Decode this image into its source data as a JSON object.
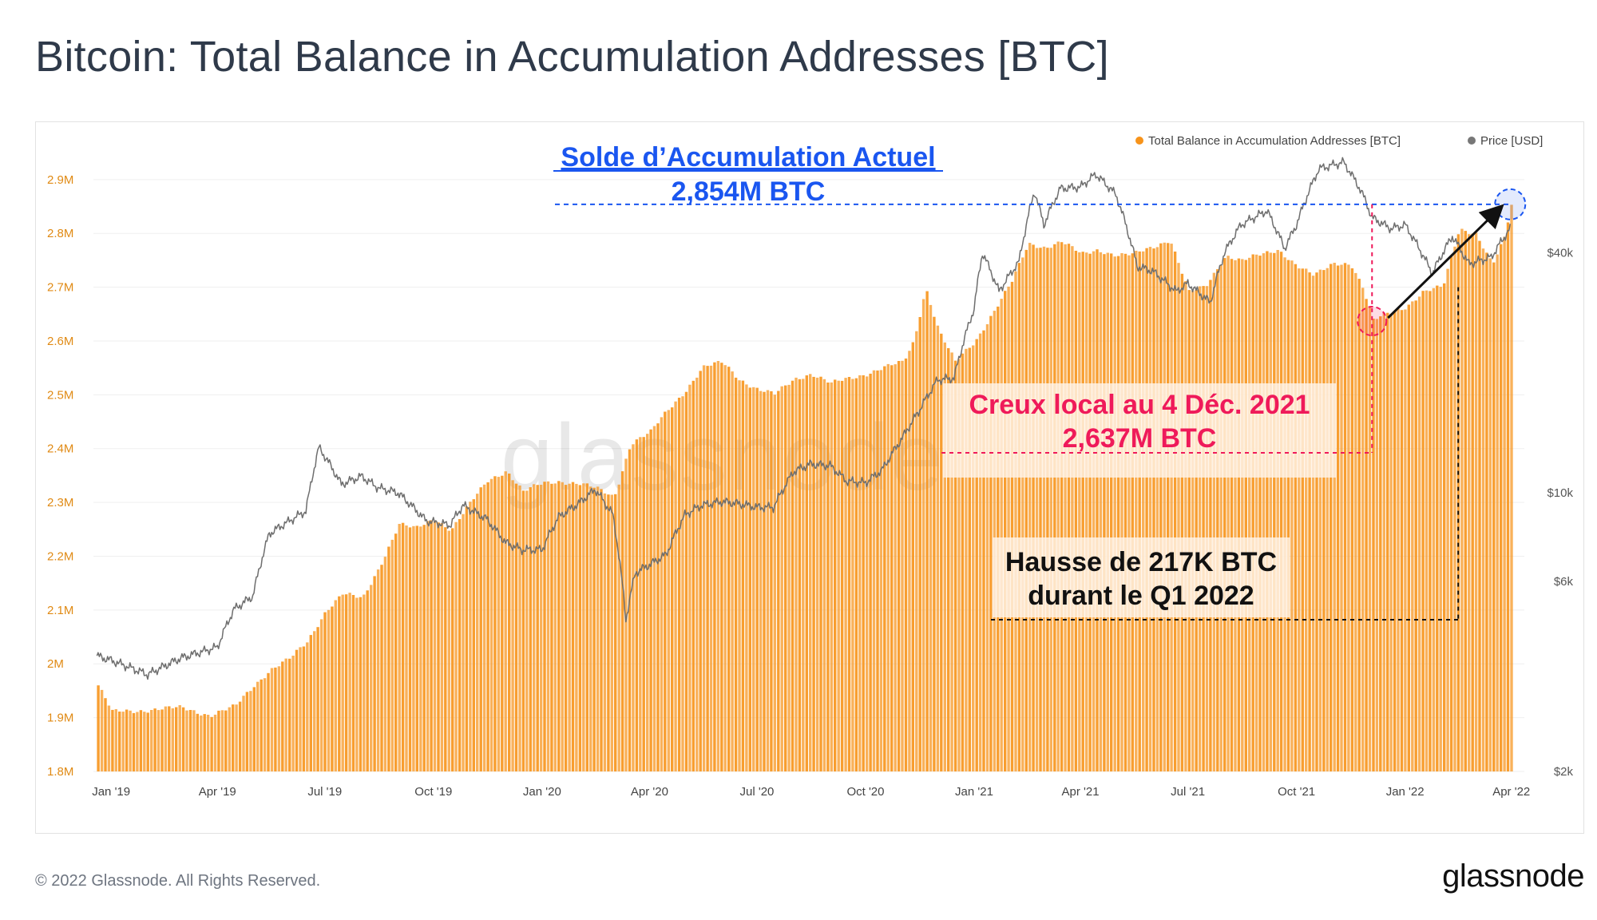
{
  "title": "Bitcoin: Total Balance in Accumulation Addresses [BTC]",
  "footer": {
    "copyright": "© 2022 Glassnode. All Rights Reserved.",
    "logo": "glassnode"
  },
  "watermark": "glassnode",
  "chart_data": {
    "type": "bar",
    "title": "Bitcoin: Total Balance in Accumulation Addresses [BTC]",
    "legend_position": "top-right",
    "grid": true,
    "legend": [
      {
        "name": "Total Balance in Accumulation Addresses [BTC]",
        "color": "#f7931a"
      },
      {
        "name": "Price [USD]",
        "color": "#777777"
      }
    ],
    "x_ticks": [
      "Jan '19",
      "Apr '19",
      "Jul '19",
      "Oct '19",
      "Jan '20",
      "Apr '20",
      "Jul '20",
      "Oct '20",
      "Jan '21",
      "Apr '21",
      "Jul '21",
      "Oct '21",
      "Jan '22",
      "Apr '22"
    ],
    "y_left_ticks": [
      "1.8M",
      "1.9M",
      "2M",
      "2.1M",
      "2.2M",
      "2.3M",
      "2.4M",
      "2.5M",
      "2.6M",
      "2.7M",
      "2.8M",
      "2.9M"
    ],
    "y_left_range": [
      1800000,
      2925000
    ],
    "y_right_ticks": [
      "$2k",
      "$6k",
      "$10k",
      "$40k"
    ],
    "y_right_scale": "log",
    "y_right_range": [
      2000,
      66000
    ],
    "colors": {
      "bars": "#f7931a",
      "price": "#6e6e6e",
      "annotation_blue": "#1a56f0",
      "annotation_red": "#ef1a5a",
      "annotation_black": "#111111"
    },
    "series": [
      {
        "name": "Total Balance in Accumulation Addresses [BTC]",
        "axis": "left",
        "points": [
          [
            "2018-12-20",
            1960000
          ],
          [
            "2019-01-01",
            1910000
          ],
          [
            "2019-02-01",
            1915000
          ],
          [
            "2019-03-01",
            1918000
          ],
          [
            "2019-03-25",
            1905000
          ],
          [
            "2019-04-15",
            1920000
          ],
          [
            "2019-05-01",
            1960000
          ],
          [
            "2019-05-15",
            1990000
          ],
          [
            "2019-06-01",
            2010000
          ],
          [
            "2019-06-15",
            2040000
          ],
          [
            "2019-07-01",
            2100000
          ],
          [
            "2019-07-15",
            2130000
          ],
          [
            "2019-08-01",
            2120000
          ],
          [
            "2019-08-15",
            2180000
          ],
          [
            "2019-09-01",
            2260000
          ],
          [
            "2019-09-15",
            2250000
          ],
          [
            "2019-10-01",
            2270000
          ],
          [
            "2019-10-15",
            2250000
          ],
          [
            "2019-11-01",
            2300000
          ],
          [
            "2019-11-15",
            2340000
          ],
          [
            "2019-12-01",
            2360000
          ],
          [
            "2019-12-15",
            2320000
          ],
          [
            "2020-01-01",
            2335000
          ],
          [
            "2020-01-15",
            2340000
          ],
          [
            "2020-02-01",
            2335000
          ],
          [
            "2020-02-15",
            2325000
          ],
          [
            "2020-03-01",
            2310000
          ],
          [
            "2020-03-15",
            2410000
          ],
          [
            "2020-04-01",
            2430000
          ],
          [
            "2020-04-15",
            2470000
          ],
          [
            "2020-05-01",
            2510000
          ],
          [
            "2020-05-15",
            2550000
          ],
          [
            "2020-06-01",
            2560000
          ],
          [
            "2020-06-15",
            2530000
          ],
          [
            "2020-07-01",
            2510000
          ],
          [
            "2020-07-15",
            2500000
          ],
          [
            "2020-08-01",
            2530000
          ],
          [
            "2020-08-15",
            2540000
          ],
          [
            "2020-09-01",
            2520000
          ],
          [
            "2020-09-15",
            2530000
          ],
          [
            "2020-10-01",
            2540000
          ],
          [
            "2020-10-15",
            2550000
          ],
          [
            "2020-11-01",
            2560000
          ],
          [
            "2020-11-10",
            2600000
          ],
          [
            "2020-11-20",
            2700000
          ],
          [
            "2020-12-01",
            2620000
          ],
          [
            "2020-12-15",
            2560000
          ],
          [
            "2021-01-01",
            2600000
          ],
          [
            "2021-01-15",
            2650000
          ],
          [
            "2021-02-01",
            2710000
          ],
          [
            "2021-02-15",
            2780000
          ],
          [
            "2021-03-01",
            2775000
          ],
          [
            "2021-03-15",
            2785000
          ],
          [
            "2021-04-01",
            2760000
          ],
          [
            "2021-04-15",
            2770000
          ],
          [
            "2021-05-01",
            2760000
          ],
          [
            "2021-05-15",
            2760000
          ],
          [
            "2021-06-01",
            2775000
          ],
          [
            "2021-06-15",
            2790000
          ],
          [
            "2021-07-01",
            2690000
          ],
          [
            "2021-07-15",
            2700000
          ],
          [
            "2021-08-01",
            2760000
          ],
          [
            "2021-08-15",
            2750000
          ],
          [
            "2021-09-01",
            2760000
          ],
          [
            "2021-09-15",
            2770000
          ],
          [
            "2021-10-01",
            2740000
          ],
          [
            "2021-10-15",
            2720000
          ],
          [
            "2021-11-01",
            2745000
          ],
          [
            "2021-11-15",
            2745000
          ],
          [
            "2021-11-25",
            2700000
          ],
          [
            "2021-12-04",
            2637000
          ],
          [
            "2021-12-15",
            2650000
          ],
          [
            "2022-01-01",
            2665000
          ],
          [
            "2022-01-15",
            2690000
          ],
          [
            "2022-02-01",
            2700000
          ],
          [
            "2022-02-15",
            2810000
          ],
          [
            "2022-03-01",
            2800000
          ],
          [
            "2022-03-15",
            2740000
          ],
          [
            "2022-03-25",
            2790000
          ],
          [
            "2022-03-31",
            2854000
          ]
        ]
      },
      {
        "name": "Price [USD]",
        "axis": "right",
        "points": [
          [
            "2018-12-20",
            3900
          ],
          [
            "2019-01-01",
            3800
          ],
          [
            "2019-02-01",
            3500
          ],
          [
            "2019-03-01",
            3850
          ],
          [
            "2019-04-01",
            4100
          ],
          [
            "2019-04-15",
            5100
          ],
          [
            "2019-05-01",
            5500
          ],
          [
            "2019-05-15",
            7900
          ],
          [
            "2019-06-01",
            8500
          ],
          [
            "2019-06-15",
            9000
          ],
          [
            "2019-06-26",
            13000
          ],
          [
            "2019-07-15",
            10500
          ],
          [
            "2019-08-01",
            11000
          ],
          [
            "2019-08-15",
            10300
          ],
          [
            "2019-09-01",
            10000
          ],
          [
            "2019-09-25",
            8500
          ],
          [
            "2019-10-15",
            8300
          ],
          [
            "2019-10-26",
            9300
          ],
          [
            "2019-11-15",
            8600
          ],
          [
            "2019-12-01",
            7500
          ],
          [
            "2019-12-15",
            7200
          ],
          [
            "2020-01-01",
            7200
          ],
          [
            "2020-01-15",
            8700
          ],
          [
            "2020-02-01",
            9400
          ],
          [
            "2020-02-15",
            10200
          ],
          [
            "2020-03-01",
            8800
          ],
          [
            "2020-03-12",
            4800
          ],
          [
            "2020-03-20",
            6300
          ],
          [
            "2020-04-01",
            6600
          ],
          [
            "2020-04-15",
            7000
          ],
          [
            "2020-05-01",
            8800
          ],
          [
            "2020-05-15",
            9300
          ],
          [
            "2020-06-01",
            9500
          ],
          [
            "2020-06-15",
            9400
          ],
          [
            "2020-07-01",
            9200
          ],
          [
            "2020-07-15",
            9200
          ],
          [
            "2020-08-01",
            11300
          ],
          [
            "2020-08-15",
            11800
          ],
          [
            "2020-09-01",
            11700
          ],
          [
            "2020-09-15",
            10700
          ],
          [
            "2020-10-01",
            10600
          ],
          [
            "2020-10-15",
            11400
          ],
          [
            "2020-11-01",
            13700
          ],
          [
            "2020-11-15",
            16000
          ],
          [
            "2020-12-01",
            19200
          ],
          [
            "2020-12-15",
            19400
          ],
          [
            "2021-01-01",
            29000
          ],
          [
            "2021-01-08",
            40000
          ],
          [
            "2021-01-22",
            32000
          ],
          [
            "2021-02-08",
            38000
          ],
          [
            "2021-02-21",
            57000
          ],
          [
            "2021-03-01",
            47000
          ],
          [
            "2021-03-15",
            58000
          ],
          [
            "2021-04-01",
            58500
          ],
          [
            "2021-04-14",
            63000
          ],
          [
            "2021-05-01",
            56000
          ],
          [
            "2021-05-19",
            37000
          ],
          [
            "2021-06-01",
            36000
          ],
          [
            "2021-06-21",
            32000
          ],
          [
            "2021-07-01",
            33500
          ],
          [
            "2021-07-20",
            30000
          ],
          [
            "2021-08-01",
            40000
          ],
          [
            "2021-08-15",
            47000
          ],
          [
            "2021-09-06",
            51000
          ],
          [
            "2021-09-21",
            41000
          ],
          [
            "2021-10-01",
            47000
          ],
          [
            "2021-10-20",
            65000
          ],
          [
            "2021-11-10",
            67500
          ],
          [
            "2021-11-25",
            57000
          ],
          [
            "2021-12-04",
            49000
          ],
          [
            "2021-12-20",
            46000
          ],
          [
            "2022-01-01",
            47000
          ],
          [
            "2022-01-24",
            35500
          ],
          [
            "2022-02-10",
            44000
          ],
          [
            "2022-02-24",
            37500
          ],
          [
            "2022-03-15",
            39000
          ],
          [
            "2022-03-31",
            46000
          ]
        ]
      }
    ],
    "annotations": [
      {
        "lines": [
          "Solde d’Accumulation Actuel",
          "2,854M BTC"
        ]
      },
      {
        "lines": [
          "Creux local au 4 Déc. 2021",
          "2,637M BTC"
        ]
      },
      {
        "lines": [
          "Hausse de 217K BTC",
          "durant le Q1 2022"
        ]
      }
    ]
  }
}
